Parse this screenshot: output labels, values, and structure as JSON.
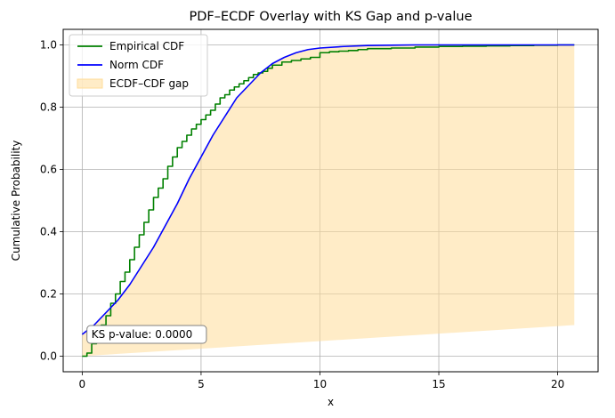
{
  "chart_data": {
    "type": "line",
    "title": "PDF–ECDF Overlay with KS Gap and p-value",
    "xlabel": "x",
    "ylabel": "Cumulative Probability",
    "xlim": [
      -0.8,
      21.7
    ],
    "ylim": [
      -0.05,
      1.05
    ],
    "xticks": [
      0,
      5,
      10,
      15,
      20
    ],
    "yticks": [
      0.0,
      0.2,
      0.4,
      0.6,
      0.8,
      1.0
    ],
    "grid": true,
    "legend_position": "top-left",
    "series": [
      {
        "name": "Empirical CDF",
        "kind": "step",
        "color": "#008000",
        "x": [
          0,
          0.2,
          0.4,
          0.6,
          0.8,
          1.0,
          1.2,
          1.4,
          1.6,
          1.8,
          2.0,
          2.2,
          2.4,
          2.6,
          2.8,
          3.0,
          3.2,
          3.4,
          3.6,
          3.8,
          4.0,
          4.2,
          4.4,
          4.6,
          4.8,
          5.0,
          5.2,
          5.4,
          5.6,
          5.8,
          6.0,
          6.2,
          6.4,
          6.6,
          6.8,
          7.0,
          7.2,
          7.4,
          7.6,
          7.8,
          8.0,
          8.4,
          8.8,
          9.2,
          9.6,
          10.0,
          10.4,
          10.8,
          11.2,
          11.6,
          12.0,
          13.0,
          14.0,
          15.0,
          16.0,
          17.0,
          18.0,
          19.0,
          20.0,
          20.7
        ],
        "y": [
          0.0,
          0.01,
          0.04,
          0.07,
          0.1,
          0.13,
          0.17,
          0.2,
          0.24,
          0.27,
          0.31,
          0.35,
          0.39,
          0.43,
          0.47,
          0.51,
          0.54,
          0.57,
          0.61,
          0.64,
          0.67,
          0.69,
          0.71,
          0.73,
          0.745,
          0.76,
          0.775,
          0.79,
          0.81,
          0.83,
          0.84,
          0.855,
          0.865,
          0.875,
          0.885,
          0.895,
          0.905,
          0.91,
          0.915,
          0.925,
          0.935,
          0.945,
          0.95,
          0.955,
          0.96,
          0.975,
          0.978,
          0.98,
          0.982,
          0.985,
          0.988,
          0.99,
          0.993,
          0.995,
          0.996,
          0.997,
          0.998,
          0.999,
          1.0,
          1.0
        ]
      },
      {
        "name": "Norm CDF",
        "kind": "line",
        "color": "#0000ff",
        "x": [
          0,
          0.5,
          1.0,
          1.5,
          2.0,
          2.5,
          3.0,
          3.5,
          4.0,
          4.5,
          5.0,
          5.5,
          6.0,
          6.5,
          7.0,
          7.5,
          8.0,
          8.5,
          9.0,
          9.5,
          10.0,
          11.0,
          12.0,
          13.0,
          14.0,
          16.0,
          18.0,
          20.7
        ],
        "y": [
          0.07,
          0.1,
          0.14,
          0.18,
          0.23,
          0.29,
          0.35,
          0.42,
          0.49,
          0.57,
          0.64,
          0.71,
          0.77,
          0.83,
          0.87,
          0.91,
          0.94,
          0.96,
          0.975,
          0.985,
          0.99,
          0.995,
          0.998,
          0.999,
          1.0,
          1.0,
          1.0,
          1.0
        ]
      },
      {
        "name": "ECDF–CDF gap",
        "kind": "fill",
        "color": "#ffdd99",
        "x": [
          0,
          20.7
        ],
        "y_lower": [
          0.0,
          0.1
        ],
        "y_upper_from": "Norm CDF"
      }
    ],
    "annotations": [
      {
        "text": "KS p-value: 0.0000",
        "x": 0.2,
        "y": 0.07
      }
    ]
  }
}
